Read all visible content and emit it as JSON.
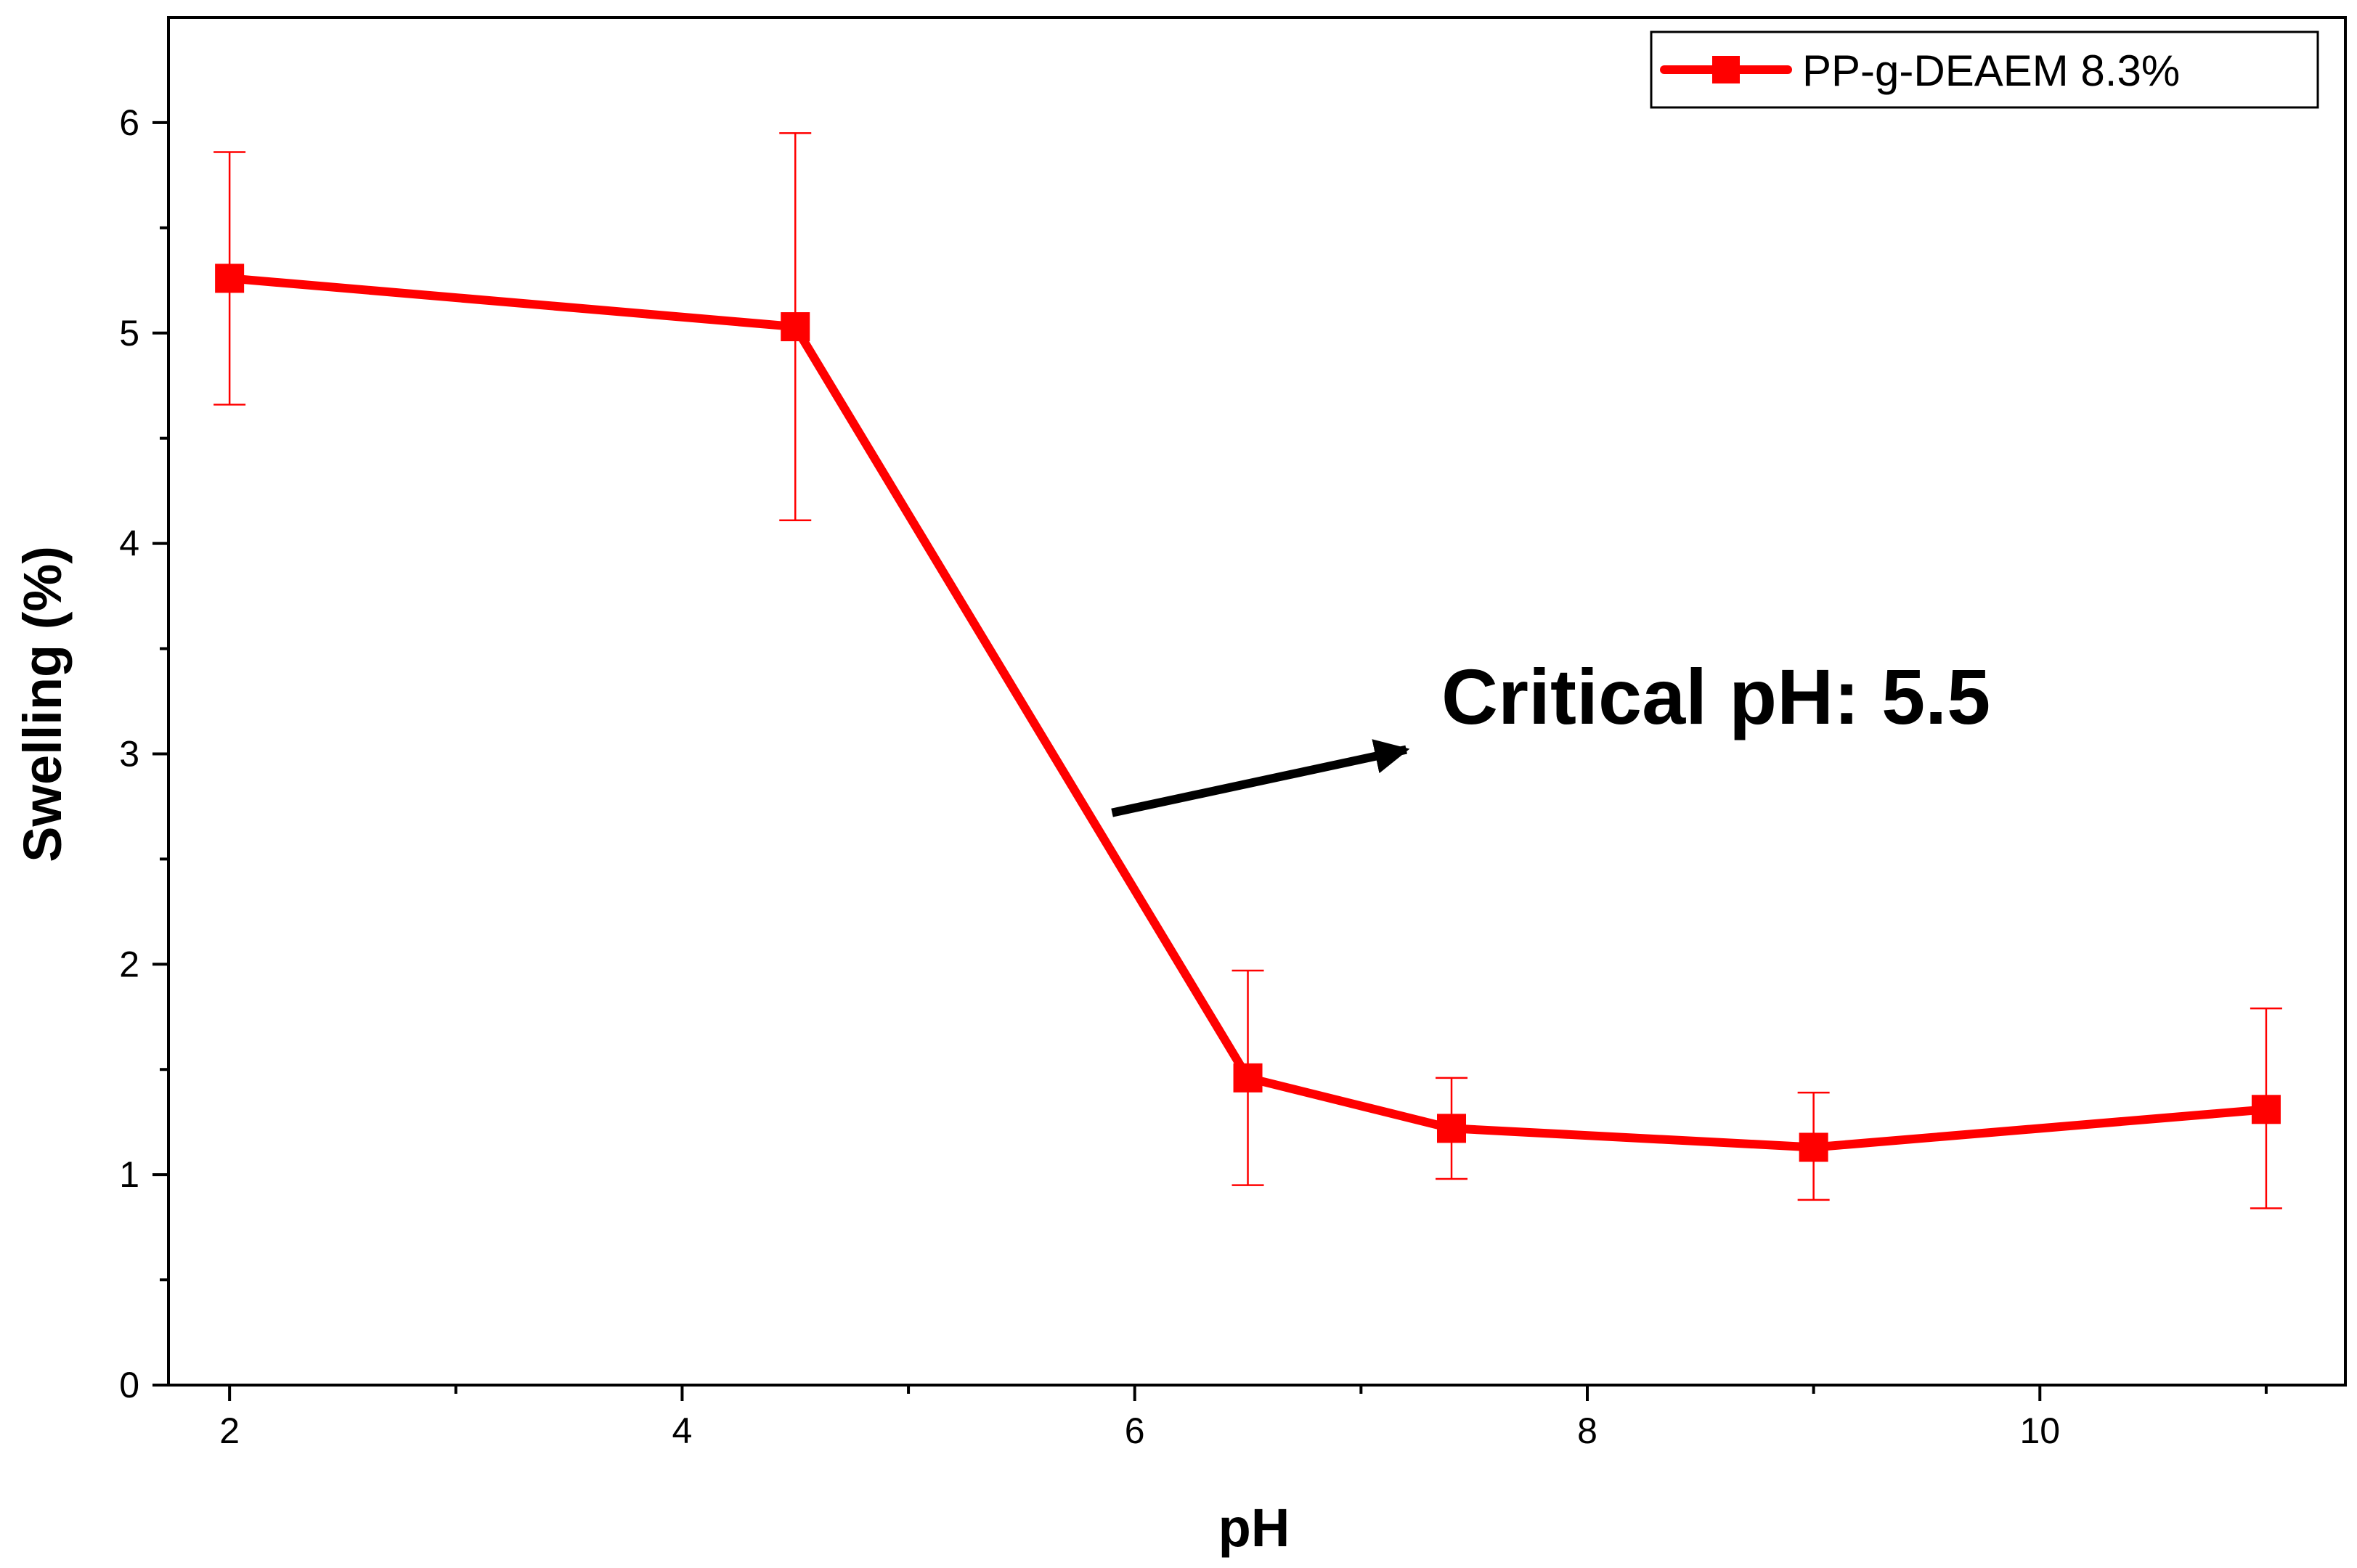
{
  "chart_data": {
    "type": "line",
    "title": "",
    "xlabel": "pH",
    "ylabel": "Swelling (%)",
    "xlim": [
      1.73,
      11.35
    ],
    "ylim": [
      0,
      6.5
    ],
    "x_ticks": [
      2,
      4,
      6,
      8,
      10
    ],
    "x_minor_ticks": [
      3,
      5,
      7,
      9,
      11
    ],
    "y_ticks": [
      0,
      1,
      2,
      3,
      4,
      5,
      6
    ],
    "y_minor_ticks": [
      0.5,
      1.5,
      2.5,
      3.5,
      4.5,
      5.5
    ],
    "grid": false,
    "legend_position": "top-right",
    "series": [
      {
        "name": "PP-g-DEAEM 8.3%",
        "color": "#ff0000",
        "marker": "square",
        "x": [
          2,
          4.5,
          6.5,
          7.4,
          9,
          11
        ],
        "y": [
          5.26,
          5.03,
          1.46,
          1.22,
          1.13,
          1.31
        ],
        "error_upper": [
          5.86,
          5.95,
          1.97,
          1.46,
          1.39,
          1.79
        ],
        "error_lower": [
          4.66,
          4.11,
          0.95,
          0.98,
          0.88,
          0.84
        ]
      }
    ],
    "annotations": [
      {
        "text": "Critical pH: 5.5",
        "arrow_from": [
          5.9,
          2.72
        ],
        "arrow_to": [
          7.2,
          3.02
        ]
      }
    ]
  }
}
